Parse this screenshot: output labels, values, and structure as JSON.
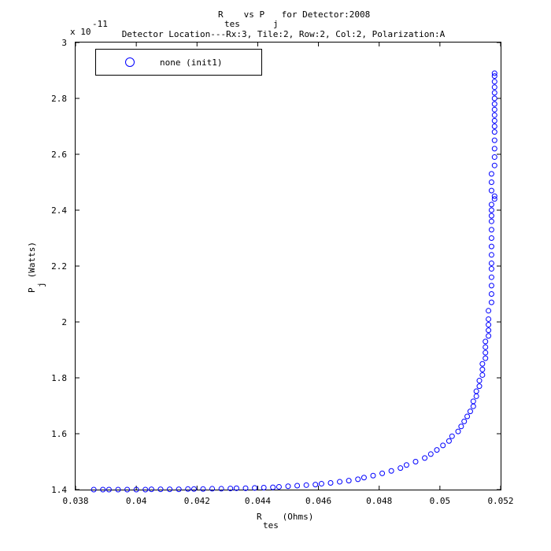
{
  "chart_data": {
    "type": "scatter",
    "title_line1_main": "R",
    "title_line1_sub": "tes",
    "title_line1_mid": " vs P",
    "title_line1_sub2": "j",
    "title_line1_end": " for Detector:2008",
    "title_line2": "Detector Location---Rx:3, Tile:2, Row:2, Col:2, Polarization:A",
    "xlabel_main": "R",
    "xlabel_sub": "tes",
    "xlabel_unit": " (Ohms)",
    "ylabel_main": "P",
    "ylabel_sub": "j",
    "ylabel_unit": " (Watts)",
    "y_multiplier_base": "x 10",
    "y_multiplier_exp": "-11",
    "xlim": [
      0.038,
      0.052
    ],
    "ylim": [
      1.4,
      3.0
    ],
    "xticks": [
      0.038,
      0.04,
      0.042,
      0.044,
      0.046,
      0.048,
      0.05,
      0.052
    ],
    "xtick_labels": [
      "0.038",
      "0.04",
      "0.042",
      "0.044",
      "0.046",
      "0.048",
      "0.05",
      "0.052"
    ],
    "yticks": [
      1.4,
      1.6,
      1.8,
      2.0,
      2.2,
      2.4,
      2.6,
      2.8,
      3.0
    ],
    "ytick_labels": [
      "1.4",
      "1.6",
      "1.8",
      "2",
      "2.2",
      "2.4",
      "2.6",
      "2.8",
      "3"
    ],
    "grid": false,
    "legend_position": "top-left",
    "marker": "circle-open",
    "series": [
      {
        "name": "none (init1)",
        "color": "#0000ff",
        "x": [
          0.0386,
          0.0389,
          0.0391,
          0.0394,
          0.0397,
          0.04,
          0.0403,
          0.0405,
          0.0408,
          0.0411,
          0.0414,
          0.0417,
          0.0419,
          0.0422,
          0.0425,
          0.0428,
          0.0431,
          0.0433,
          0.0436,
          0.0439,
          0.0442,
          0.0445,
          0.0447,
          0.045,
          0.0453,
          0.0456,
          0.0459,
          0.0461,
          0.0464,
          0.0467,
          0.047,
          0.0473,
          0.0475,
          0.0478,
          0.0481,
          0.0484,
          0.0487,
          0.0489,
          0.0492,
          0.0495,
          0.0497,
          0.0499,
          0.0501,
          0.0503,
          0.0504,
          0.0506,
          0.0507,
          0.0508,
          0.0509,
          0.051,
          0.0511,
          0.0511,
          0.0512,
          0.0512,
          0.0513,
          0.0513,
          0.0514,
          0.0514,
          0.0514,
          0.0515,
          0.0515,
          0.0515,
          0.0515,
          0.0516,
          0.0516,
          0.0516,
          0.0516,
          0.0516,
          0.0517,
          0.0517,
          0.0517,
          0.0517,
          0.0517,
          0.0517,
          0.0517,
          0.0517,
          0.0517,
          0.0517,
          0.0517,
          0.0517,
          0.0517,
          0.0517,
          0.0518,
          0.0518,
          0.0517,
          0.0517,
          0.0517,
          0.0518,
          0.0518,
          0.0518,
          0.0518,
          0.0518,
          0.0518,
          0.0518,
          0.0518,
          0.0518,
          0.0518,
          0.0518,
          0.0518,
          0.0518,
          0.0518,
          0.0518,
          0.0518
        ],
        "y": [
          1.4,
          1.4,
          1.4,
          1.4,
          1.4,
          1.4,
          1.4,
          1.401,
          1.401,
          1.401,
          1.401,
          1.402,
          1.402,
          1.402,
          1.403,
          1.403,
          1.404,
          1.405,
          1.405,
          1.406,
          1.407,
          1.408,
          1.41,
          1.412,
          1.414,
          1.416,
          1.418,
          1.421,
          1.424,
          1.428,
          1.432,
          1.437,
          1.443,
          1.45,
          1.458,
          1.467,
          1.477,
          1.488,
          1.5,
          1.513,
          1.527,
          1.542,
          1.558,
          1.574,
          1.591,
          1.608,
          1.626,
          1.644,
          1.662,
          1.68,
          1.698,
          1.716,
          1.734,
          1.752,
          1.77,
          1.79,
          1.81,
          1.83,
          1.85,
          1.87,
          1.89,
          1.91,
          1.93,
          1.95,
          1.97,
          1.99,
          2.01,
          2.04,
          2.07,
          2.1,
          2.13,
          2.16,
          2.19,
          2.21,
          2.24,
          2.27,
          2.3,
          2.33,
          2.36,
          2.38,
          2.4,
          2.42,
          2.44,
          2.45,
          2.47,
          2.5,
          2.53,
          2.56,
          2.59,
          2.62,
          2.65,
          2.68,
          2.7,
          2.72,
          2.74,
          2.76,
          2.78,
          2.8,
          2.82,
          2.84,
          2.86,
          2.88,
          2.89
        ]
      }
    ]
  }
}
